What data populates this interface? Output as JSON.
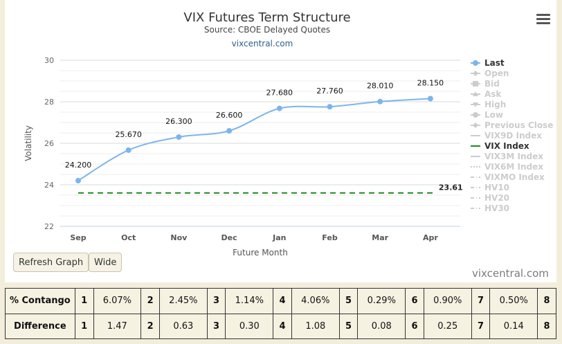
{
  "chart_data": {
    "type": "line",
    "title": "VIX Futures Term Structure",
    "subtitle": "Source: CBOE Delayed Quotes",
    "site_link": "vixcentral.com",
    "xlabel": "Future Month",
    "ylabel": "Volatility",
    "categories": [
      "Sep",
      "Oct",
      "Nov",
      "Dec",
      "Jan",
      "Feb",
      "Mar",
      "Apr"
    ],
    "ylim": [
      22,
      30
    ],
    "yticks": [
      22,
      24,
      26,
      28,
      30
    ],
    "grid": true,
    "legend_position": "right",
    "series": [
      {
        "name": "Last",
        "values": [
          24.2,
          25.67,
          26.3,
          26.6,
          27.68,
          27.76,
          28.01,
          28.15
        ],
        "labels": [
          "24.200",
          "25.670",
          "26.300",
          "26.600",
          "27.680",
          "27.760",
          "28.010",
          "28.150"
        ],
        "color": "#7cb5ec"
      },
      {
        "name": "VIX Index",
        "value": 23.61,
        "label": "23.61",
        "color": "#1a8a1a",
        "style": "dashed"
      }
    ],
    "legend": [
      {
        "name": "Last",
        "active": true,
        "marker": "circle"
      },
      {
        "name": "Open",
        "active": false,
        "marker": "diamond"
      },
      {
        "name": "Bid",
        "active": false,
        "marker": "square"
      },
      {
        "name": "Ask",
        "active": false,
        "marker": "triangle"
      },
      {
        "name": "High",
        "active": false,
        "marker": "triangle-down"
      },
      {
        "name": "Low",
        "active": false,
        "marker": "circle"
      },
      {
        "name": "Previous Close",
        "active": false,
        "marker": "diamond"
      },
      {
        "name": "VIX9D Index",
        "active": false,
        "marker": "line"
      },
      {
        "name": "VIX Index",
        "active": true,
        "marker": "line-green"
      },
      {
        "name": "VIX3M Index",
        "active": false,
        "marker": "line"
      },
      {
        "name": "VIX6M Index",
        "active": false,
        "marker": "dotted"
      },
      {
        "name": "VIXMO Index",
        "active": false,
        "marker": "dashdot"
      },
      {
        "name": "HV10",
        "active": false,
        "marker": "dashdot"
      },
      {
        "name": "HV20",
        "active": false,
        "marker": "dashdot"
      },
      {
        "name": "HV30",
        "active": false,
        "marker": "dashdot"
      }
    ]
  },
  "buttons": {
    "refresh": "Refresh Graph",
    "wide": "Wide"
  },
  "credit": "vixcentral.com",
  "table": {
    "contango_label": "% Contango",
    "difference_label": "Difference",
    "indices": [
      "1",
      "2",
      "3",
      "4",
      "5",
      "6",
      "7",
      "8"
    ],
    "contango": [
      "6.07%",
      "2.45%",
      "1.14%",
      "4.06%",
      "0.29%",
      "0.90%",
      "0.50%"
    ],
    "difference": [
      "1.47",
      "0.63",
      "0.30",
      "1.08",
      "0.08",
      "0.25",
      "0.14"
    ]
  },
  "colors": {
    "page_bg": "#f3eedc",
    "panel_bg": "#ffffff",
    "last_series": "#7cb5ec",
    "vix_index": "#1a8a1a",
    "legend_inactive": "#cccccc"
  }
}
